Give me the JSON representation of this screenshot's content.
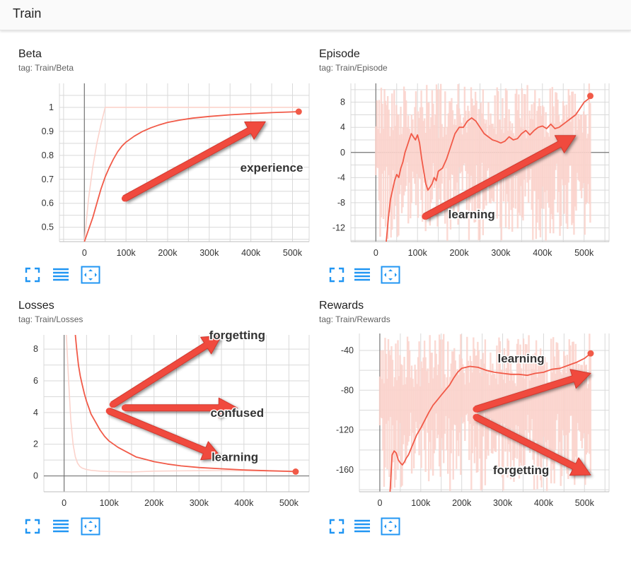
{
  "section": {
    "title": "Train"
  },
  "colors": {
    "line": "#f15a48",
    "raw": "#fbd3cc",
    "arrow": "#f04a3e",
    "grid": "#d9d9d9",
    "axis": "#777777",
    "icon": "#2196f3"
  },
  "icons": [
    "fullscreen-icon",
    "lines-icon",
    "fit-domain-icon"
  ],
  "chart_data": [
    {
      "id": "beta",
      "type": "line",
      "title": "Beta",
      "subtitle": "tag: Train/Beta",
      "xlim": [
        -60000,
        540000
      ],
      "ylim": [
        0.44,
        1.1
      ],
      "xticks": [
        0,
        100000,
        200000,
        300000,
        400000,
        500000
      ],
      "xtick_labels": [
        "0",
        "100k",
        "200k",
        "300k",
        "400k",
        "500k"
      ],
      "yticks": [
        0.5,
        0.6,
        0.7,
        0.8,
        0.9,
        1.0
      ],
      "ytick_labels": [
        "0.5",
        "0.6",
        "0.7",
        "0.8",
        "0.9",
        "1"
      ],
      "zero_line_x": true,
      "zero_line_y": false,
      "series": [
        {
          "role": "raw",
          "x": [
            0,
            10000,
            20000,
            30000,
            40000,
            50000,
            515000
          ],
          "y": [
            0.44,
            0.62,
            0.75,
            0.85,
            0.93,
            1.0,
            1.0
          ]
        },
        {
          "role": "smoothed",
          "x": [
            0,
            10000,
            20000,
            30000,
            40000,
            50000,
            60000,
            70000,
            80000,
            90000,
            100000,
            120000,
            140000,
            160000,
            180000,
            200000,
            230000,
            260000,
            300000,
            350000,
            400000,
            450000,
            500000,
            515000
          ],
          "y": [
            0.44,
            0.49,
            0.54,
            0.6,
            0.66,
            0.71,
            0.75,
            0.785,
            0.815,
            0.838,
            0.855,
            0.88,
            0.9,
            0.915,
            0.927,
            0.937,
            0.947,
            0.955,
            0.962,
            0.969,
            0.974,
            0.978,
            0.981,
            0.982
          ],
          "end_marker": true
        }
      ],
      "annotations": [
        {
          "text": "experience",
          "x": 450000,
          "y": 0.75
        }
      ],
      "arrows": [
        {
          "from": [
            97000,
            0.62
          ],
          "to": [
            435000,
            0.94
          ]
        }
      ]
    },
    {
      "id": "episode",
      "type": "line",
      "title": "Episode",
      "subtitle": "tag: Train/Episode",
      "xlim": [
        -60000,
        560000
      ],
      "ylim": [
        -14.2,
        11
      ],
      "xticks": [
        0,
        100000,
        200000,
        300000,
        400000,
        500000
      ],
      "xtick_labels": [
        "0",
        "100k",
        "200k",
        "300k",
        "400k",
        "500k"
      ],
      "yticks": [
        -12,
        -8,
        -4,
        0,
        4,
        8
      ],
      "ytick_labels": [
        "-12",
        "-8",
        "-4",
        "0",
        "4",
        "8"
      ],
      "zero_line_x": true,
      "zero_line_y": true,
      "series": [
        {
          "role": "raw_band",
          "x": [
            0,
            515000
          ],
          "y": [
            -14.2,
            11
          ]
        },
        {
          "role": "smoothed",
          "x": [
            25000,
            30000,
            35000,
            40000,
            45000,
            50000,
            55000,
            60000,
            65000,
            70000,
            75000,
            80000,
            85000,
            90000,
            95000,
            100000,
            105000,
            110000,
            115000,
            120000,
            125000,
            130000,
            135000,
            140000,
            145000,
            150000,
            160000,
            170000,
            180000,
            190000,
            200000,
            210000,
            220000,
            230000,
            240000,
            250000,
            260000,
            270000,
            280000,
            290000,
            300000,
            310000,
            320000,
            330000,
            340000,
            350000,
            360000,
            370000,
            380000,
            390000,
            400000,
            410000,
            420000,
            430000,
            440000,
            450000,
            460000,
            470000,
            480000,
            490000,
            500000,
            510000,
            515000
          ],
          "y": [
            -14.2,
            -10.5,
            -7.5,
            -6,
            -4.5,
            -3.5,
            -4,
            -2.5,
            -1.5,
            0,
            1,
            2,
            3,
            2.5,
            2,
            2.8,
            1.5,
            -1,
            -3,
            -5,
            -6,
            -5.5,
            -5,
            -4,
            -4.5,
            -3,
            -2.5,
            -1,
            1,
            3,
            4,
            4,
            5,
            5.5,
            5,
            4,
            3,
            2.5,
            2,
            1.8,
            1.5,
            1.8,
            2.5,
            2,
            2.2,
            3,
            3.5,
            2.8,
            3.5,
            4,
            4.2,
            3.8,
            4.5,
            3.8,
            4,
            4.5,
            5,
            5.5,
            6,
            7,
            8,
            8.5,
            9
          ],
          "end_marker": true
        }
      ],
      "annotations": [
        {
          "text": "learning",
          "x": 230000,
          "y": -9.8
        }
      ],
      "arrows": [
        {
          "from": [
            118000,
            -10.2
          ],
          "to": [
            480000,
            2.7
          ]
        }
      ]
    },
    {
      "id": "losses",
      "type": "line",
      "title": "Losses",
      "subtitle": "tag: Train/Losses",
      "xlim": [
        -45000,
        545000
      ],
      "ylim": [
        -1.0,
        8.9
      ],
      "xticks": [
        0,
        100000,
        200000,
        300000,
        400000,
        500000
      ],
      "xtick_labels": [
        "0",
        "100k",
        "200k",
        "300k",
        "400k",
        "500k"
      ],
      "yticks": [
        0,
        2,
        4,
        6,
        8
      ],
      "ytick_labels": [
        "0",
        "2",
        "4",
        "6",
        "8"
      ],
      "zero_line_x": true,
      "zero_line_y": true,
      "series": [
        {
          "role": "raw",
          "x": [
            5000,
            10000,
            15000,
            20000,
            25000,
            30000,
            35000,
            40000,
            50000,
            60000,
            80000,
            100000,
            150000,
            200000,
            250000,
            300000,
            350000,
            400000,
            450000,
            515000
          ],
          "y": [
            8.9,
            6.0,
            3.5,
            2.0,
            1.2,
            0.8,
            0.6,
            0.5,
            0.4,
            0.35,
            0.3,
            0.28,
            0.25,
            0.3,
            0.32,
            0.33,
            0.34,
            0.33,
            0.32,
            0.3
          ]
        },
        {
          "role": "smoothed",
          "x": [
            25000,
            28000,
            32000,
            36000,
            40000,
            45000,
            50000,
            55000,
            60000,
            70000,
            80000,
            90000,
            100000,
            120000,
            140000,
            160000,
            180000,
            200000,
            230000,
            260000,
            300000,
            350000,
            400000,
            450000,
            500000,
            515000
          ],
          "y": [
            8.9,
            8.0,
            7.0,
            6.3,
            5.8,
            5.2,
            4.7,
            4.3,
            3.9,
            3.4,
            2.9,
            2.5,
            2.2,
            1.8,
            1.5,
            1.2,
            1.05,
            0.9,
            0.75,
            0.63,
            0.53,
            0.45,
            0.38,
            0.33,
            0.29,
            0.27
          ],
          "end_marker": true
        }
      ],
      "annotations": [
        {
          "text": "forgetting",
          "x": 385000,
          "y": 8.9
        },
        {
          "text": "confused",
          "x": 385000,
          "y": 4.0
        },
        {
          "text": "learning",
          "x": 380000,
          "y": 1.2
        }
      ],
      "arrows": [
        {
          "from": [
            108000,
            4.5
          ],
          "to": [
            350000,
            8.85
          ]
        },
        {
          "from": [
            135000,
            4.3
          ],
          "to": [
            385000,
            4.3
          ]
        },
        {
          "from": [
            100000,
            4.1
          ],
          "to": [
            350000,
            1.15
          ]
        }
      ]
    },
    {
      "id": "rewards",
      "type": "line",
      "title": "Rewards",
      "subtitle": "tag: Train/Rewards",
      "xlim": [
        -50000,
        560000
      ],
      "ylim": [
        -182,
        -23
      ],
      "xticks": [
        0,
        100000,
        200000,
        300000,
        400000,
        500000
      ],
      "xtick_labels": [
        "0",
        "100k",
        "200k",
        "300k",
        "400k",
        "500k"
      ],
      "yticks": [
        -160,
        -120,
        -80,
        -40
      ],
      "ytick_labels": [
        "-160",
        "-120",
        "-80",
        "-40"
      ],
      "zero_line_x": true,
      "zero_line_y": false,
      "series": [
        {
          "role": "raw_band",
          "x": [
            0,
            515000
          ],
          "y": [
            -182,
            -23
          ]
        },
        {
          "role": "smoothed",
          "x": [
            25000,
            28000,
            30000,
            35000,
            40000,
            45000,
            50000,
            55000,
            60000,
            65000,
            70000,
            80000,
            90000,
            100000,
            110000,
            120000,
            130000,
            140000,
            150000,
            160000,
            170000,
            180000,
            190000,
            200000,
            210000,
            220000,
            240000,
            260000,
            280000,
            300000,
            320000,
            340000,
            360000,
            380000,
            400000,
            420000,
            440000,
            460000,
            480000,
            500000,
            515000
          ],
          "y": [
            -182,
            -160,
            -145,
            -141,
            -143,
            -150,
            -153,
            -155,
            -152,
            -148,
            -145,
            -135,
            -125,
            -118,
            -110,
            -102,
            -95,
            -90,
            -85,
            -80,
            -75,
            -68,
            -62,
            -58,
            -57,
            -56,
            -57,
            -60,
            -62,
            -63,
            -64,
            -64,
            -65,
            -63,
            -62,
            -59,
            -58,
            -55,
            -52,
            -48,
            -43
          ],
          "end_marker": true
        }
      ],
      "annotations": [
        {
          "text": "learning",
          "x": 345000,
          "y": -48
        },
        {
          "text": "forgetting",
          "x": 345000,
          "y": -160
        }
      ],
      "arrows": [
        {
          "from": [
            235000,
            -99
          ],
          "to": [
            515000,
            -63
          ]
        },
        {
          "from": [
            235000,
            -107
          ],
          "to": [
            515000,
            -165
          ]
        }
      ]
    }
  ]
}
